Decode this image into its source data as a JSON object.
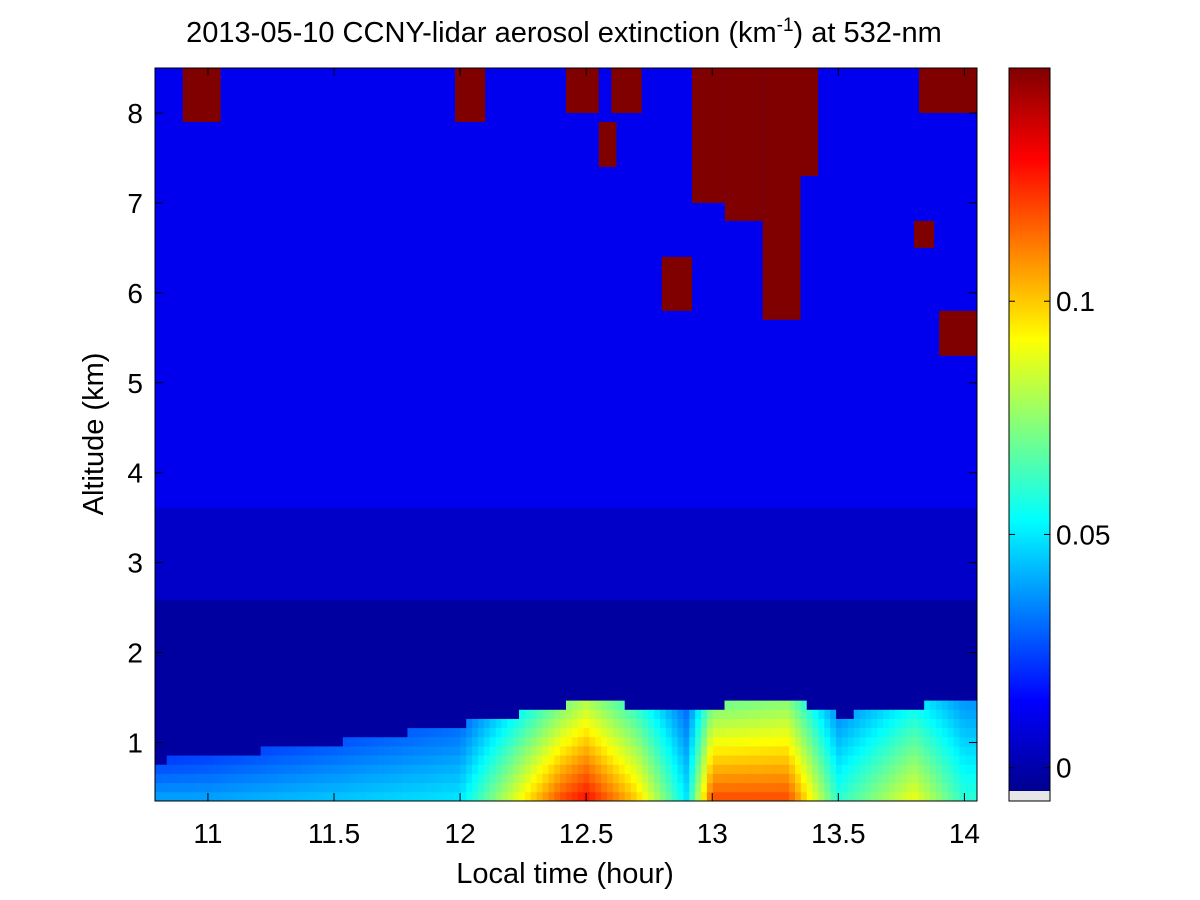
{
  "chart_data": {
    "type": "heatmap",
    "title_main": "2013-05-10 CCNY-lidar aerosol extinction (km",
    "title_sup": "-1",
    "title_tail": ") at 532-nm",
    "xlabel": "Local time (hour)",
    "ylabel": "Altitude (km)",
    "xlim": [
      10.79,
      14.05
    ],
    "ylim": [
      0.35,
      8.5
    ],
    "x_ticks": [
      11,
      11.5,
      12,
      12.5,
      13,
      13.5,
      14
    ],
    "x_tick_labels": [
      "11",
      "11.5",
      "12",
      "12.5",
      "13",
      "13.5",
      "14"
    ],
    "y_ticks": [
      1,
      2,
      3,
      4,
      5,
      6,
      7,
      8
    ],
    "y_tick_labels": [
      "1",
      "2",
      "3",
      "4",
      "5",
      "6",
      "7",
      "8"
    ],
    "colormap": "jet",
    "clim": [
      -0.005,
      0.15
    ],
    "colorbar_ticks": [
      0,
      0.05,
      0.1
    ],
    "colorbar_tick_labels": [
      "0",
      "0.05",
      "0.1"
    ],
    "grid": false,
    "time_series_samples": {
      "x": [
        10.8,
        11.0,
        11.5,
        12.0,
        12.4,
        12.5,
        12.7,
        12.9,
        13.0,
        13.3,
        13.5,
        13.8,
        14.0
      ],
      "boundary_layer_top_km": [
        0.8,
        0.85,
        1.0,
        1.2,
        1.4,
        1.5,
        1.4,
        1.4,
        1.4,
        1.5,
        1.3,
        1.4,
        1.5
      ],
      "surface_extinction_km-1": [
        0.04,
        0.04,
        0.045,
        0.05,
        0.12,
        0.13,
        0.1,
        0.05,
        0.12,
        0.12,
        0.06,
        0.09,
        0.06
      ]
    },
    "cloud_features": [
      {
        "x_start": 10.9,
        "x_end": 11.05,
        "alt_bottom_km": 7.9,
        "alt_top_km": 8.5
      },
      {
        "x_start": 11.98,
        "x_end": 12.1,
        "alt_bottom_km": 7.9,
        "alt_top_km": 8.5
      },
      {
        "x_start": 12.42,
        "x_end": 12.55,
        "alt_bottom_km": 8.0,
        "alt_top_km": 8.5
      },
      {
        "x_start": 12.55,
        "x_end": 12.62,
        "alt_bottom_km": 7.4,
        "alt_top_km": 7.9
      },
      {
        "x_start": 12.6,
        "x_end": 12.72,
        "alt_bottom_km": 8.0,
        "alt_top_km": 8.5
      },
      {
        "x_start": 12.8,
        "x_end": 12.92,
        "alt_bottom_km": 5.8,
        "alt_top_km": 6.4
      },
      {
        "x_start": 12.92,
        "x_end": 13.05,
        "alt_bottom_km": 7.0,
        "alt_top_km": 8.5
      },
      {
        "x_start": 13.05,
        "x_end": 13.2,
        "alt_bottom_km": 6.8,
        "alt_top_km": 8.5
      },
      {
        "x_start": 13.2,
        "x_end": 13.35,
        "alt_bottom_km": 5.7,
        "alt_top_km": 8.5
      },
      {
        "x_start": 13.35,
        "x_end": 13.42,
        "alt_bottom_km": 7.3,
        "alt_top_km": 8.5
      },
      {
        "x_start": 13.8,
        "x_end": 13.88,
        "alt_bottom_km": 6.5,
        "alt_top_km": 6.8
      },
      {
        "x_start": 13.82,
        "x_end": 14.05,
        "alt_bottom_km": 8.0,
        "alt_top_km": 8.5
      },
      {
        "x_start": 13.9,
        "x_end": 14.05,
        "alt_bottom_km": 5.3,
        "alt_top_km": 5.8
      }
    ]
  }
}
